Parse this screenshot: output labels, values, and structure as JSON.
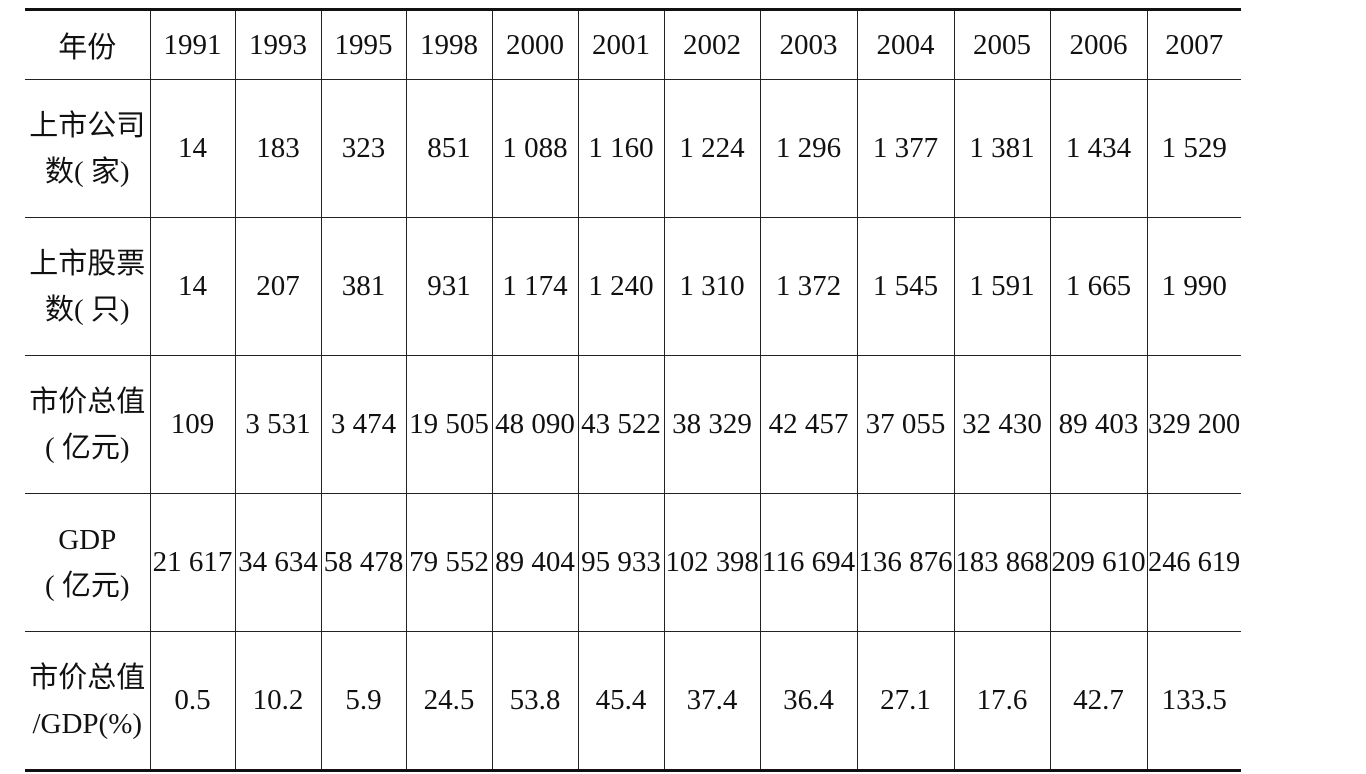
{
  "table": {
    "header": [
      "年份",
      "1991",
      "1993",
      "1995",
      "1998",
      "2000",
      "2001",
      "2002",
      "2003",
      "2004",
      "2005",
      "2006",
      "2007"
    ],
    "rows": [
      {
        "label": [
          "上市公司",
          "数( 家)"
        ],
        "cells": [
          "14",
          "183",
          "323",
          "851",
          "1 088",
          "1 160",
          "1 224",
          "1 296",
          "1 377",
          "1 381",
          "1 434",
          "1 529"
        ]
      },
      {
        "label": [
          "上市股票",
          "数( 只)"
        ],
        "cells": [
          "14",
          "207",
          "381",
          "931",
          "1 174",
          "1 240",
          "1 310",
          "1 372",
          "1 545",
          "1 591",
          "1 665",
          "1 990"
        ]
      },
      {
        "label": [
          "市价总值",
          "( 亿元)"
        ],
        "cells": [
          "109",
          "3 531",
          "3 474",
          "19 505",
          "48 090",
          "43 522",
          "38 329",
          "42 457",
          "37 055",
          "32 430",
          "89 403",
          "329 200"
        ]
      },
      {
        "label": [
          "GDP",
          "( 亿元)"
        ],
        "cells": [
          "21 617",
          "34 634",
          "58 478",
          "79 552",
          "89 404",
          "95 933",
          "102 398",
          "116 694",
          "136 876",
          "183 868",
          "209 610",
          "246 619"
        ]
      },
      {
        "label": [
          "市价总值",
          "/GDP(%)"
        ],
        "cells": [
          "0.5",
          "10.2",
          "5.9",
          "24.5",
          "53.8",
          "45.4",
          "37.4",
          "36.4",
          "27.1",
          "17.6",
          "42.7",
          "133.5"
        ]
      }
    ]
  }
}
